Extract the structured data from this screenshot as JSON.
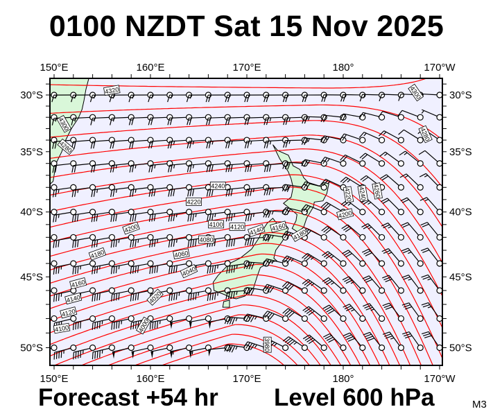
{
  "title": "0100 NZDT Sat 15 Nov 2025",
  "footer": {
    "forecast": "Forecast +54 hr",
    "level": "Level 600 hPa",
    "model_code": "M3"
  },
  "map": {
    "projection": "mercator",
    "lon_range": [
      "150°E",
      "170°W"
    ],
    "lat_range": [
      "28.6°S",
      "50.7°S"
    ],
    "lon_labels": [
      "150°E",
      "160°E",
      "170°E",
      "180°",
      "170°W"
    ],
    "lat_labels": [
      "30°S",
      "35°S",
      "40°S",
      "45°S",
      "50°S"
    ],
    "field": "geopotential height (m) with wind barbs",
    "contour_labels": [
      "4320",
      "4300",
      "4280",
      "4240",
      "4220",
      "4200",
      "4180",
      "4160",
      "4140",
      "4120",
      "4100",
      "4300",
      "4280",
      "4260",
      "4240",
      "4220",
      "4200",
      "4100",
      "4120",
      "4140",
      "4160",
      "4180",
      "4080",
      "4060",
      "4040",
      "4020",
      "4000",
      "3980"
    ],
    "colors": {
      "ocean": "#f0f0ff",
      "land": "#d9f7d9",
      "contours": "#ff0000",
      "barbs": "#000000"
    }
  }
}
